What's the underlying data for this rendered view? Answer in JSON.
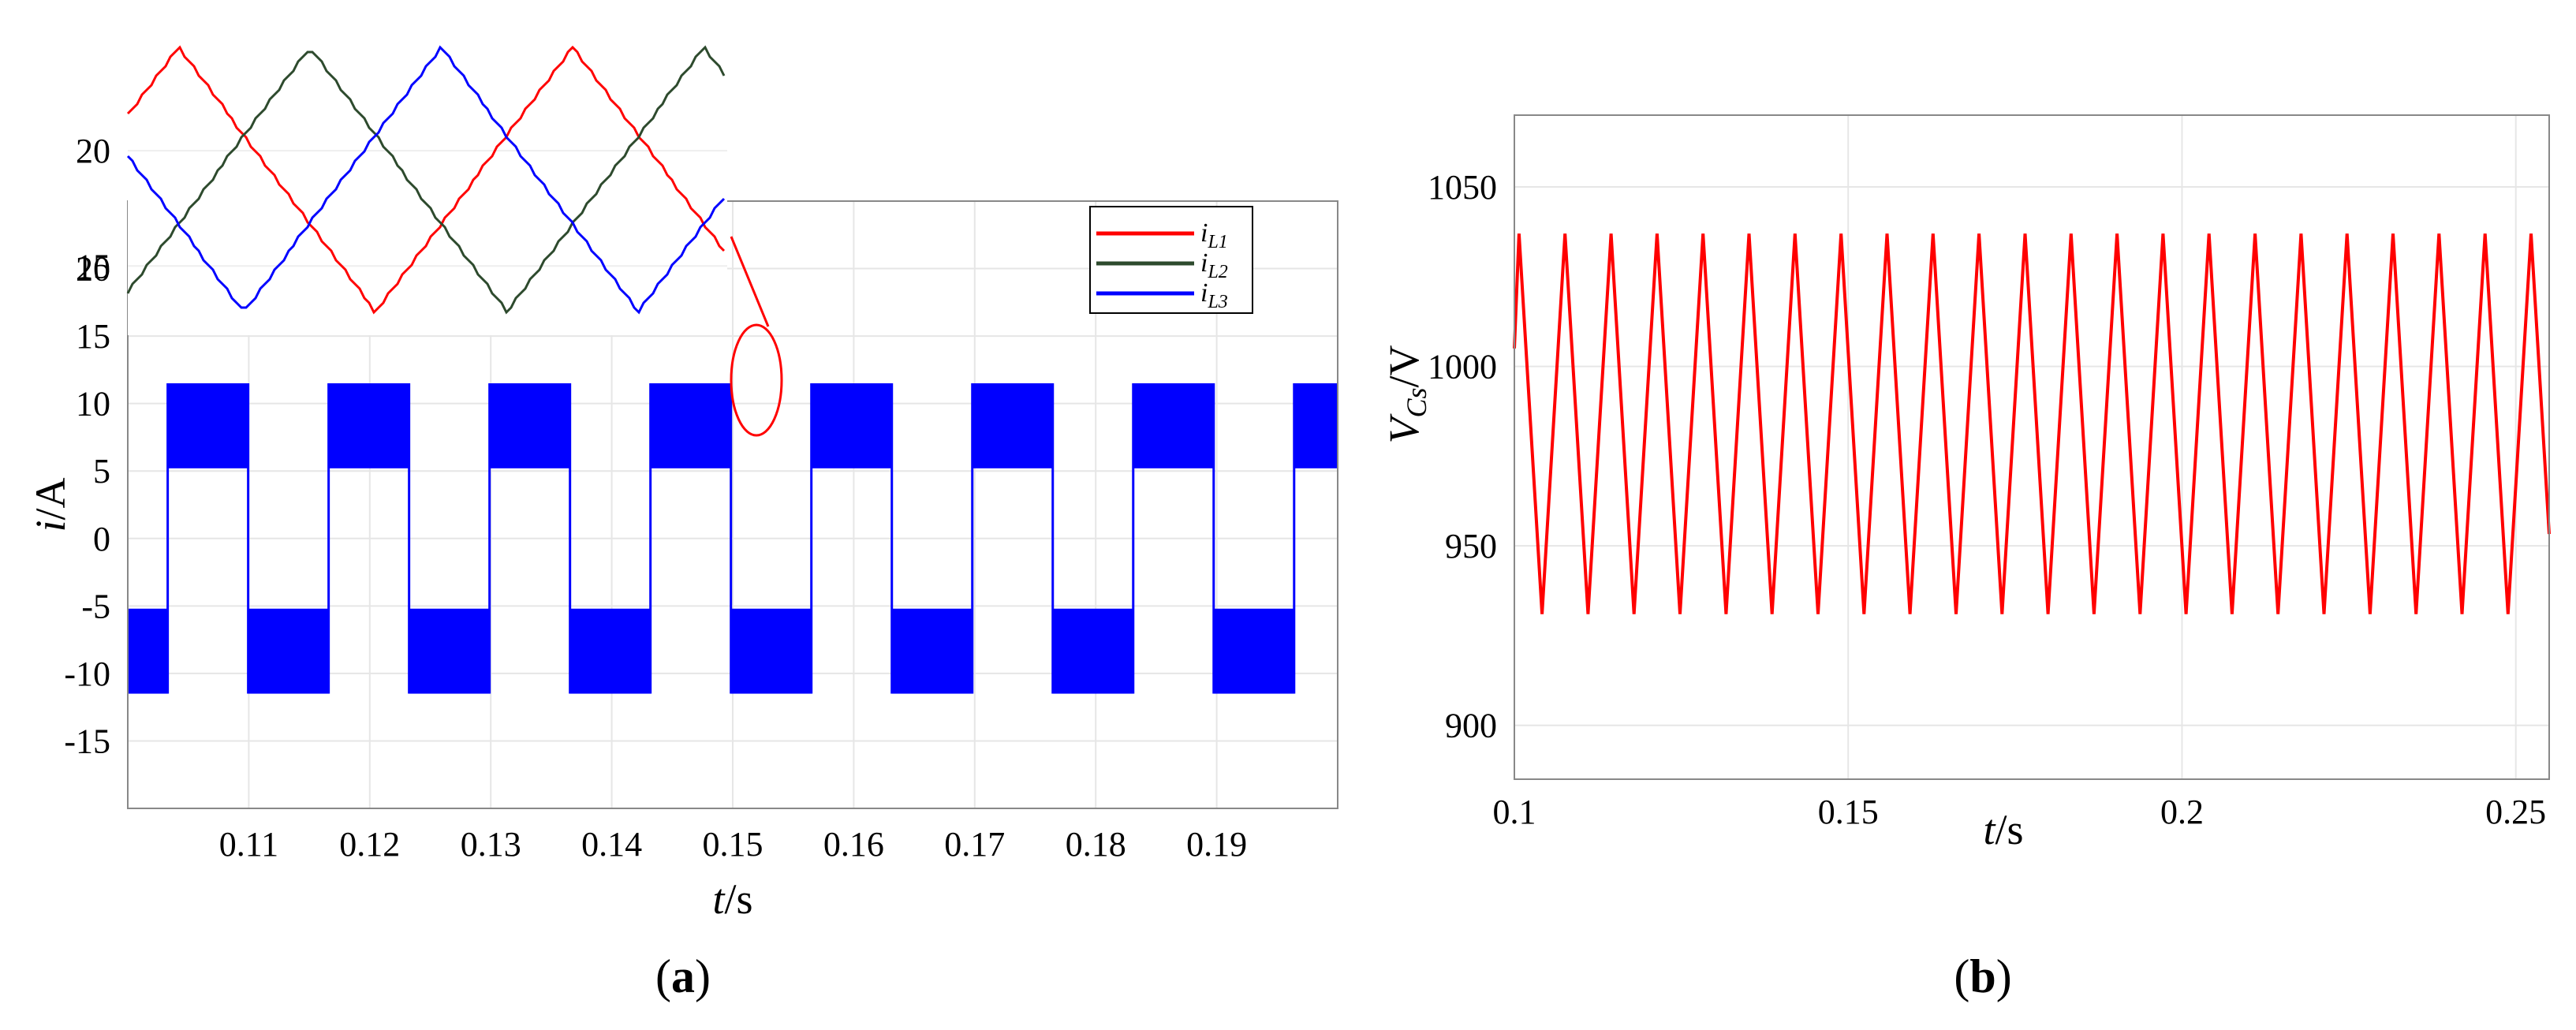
{
  "chart_data": [
    {
      "id": "a",
      "type": "line",
      "panel_label": "a",
      "xlabel_italic": "t",
      "xlabel_unit": "/s",
      "ylabel_italic": "i",
      "ylabel_unit": "/A",
      "xlim": [
        0.1,
        0.2
      ],
      "ylim": [
        -20,
        25
      ],
      "x_ticks": [
        0.11,
        0.12,
        0.13,
        0.14,
        0.15,
        0.16,
        0.17,
        0.18,
        0.19
      ],
      "y_ticks": [
        -15,
        -10,
        -5,
        0,
        5,
        10,
        15,
        20
      ],
      "grid": true,
      "legend": "top-right",
      "series": [
        {
          "name": "i_L1",
          "sub": "L1",
          "color": "#ff0000"
        },
        {
          "name": "i_L2",
          "sub": "L2",
          "color": "#2d4a2d"
        },
        {
          "name": "i_L3",
          "sub": "L3",
          "color": "#0000ff",
          "square_wave": {
            "period": 0.0133,
            "first_high_start": 0.1033,
            "high_band": [
              5.2,
              11.5
            ],
            "low_band": [
              -11.5,
              -5.2
            ]
          }
        }
      ],
      "inset": {
        "ylim": [
          12,
          25
        ],
        "y_ticks": [
          15,
          20
        ],
        "waveform": "triangle",
        "approx_peak": 24.5,
        "approx_trough": 13.0
      }
    },
    {
      "id": "b",
      "type": "line",
      "panel_label": "b",
      "xlabel_italic": "t",
      "xlabel_unit": "/s",
      "ylabel_italic": "V",
      "ylabel_sub": "Cs",
      "ylabel_unit": "/V",
      "xlim": [
        0.1,
        0.255
      ],
      "ylim": [
        885,
        1070
      ],
      "x_ticks": [
        0.1,
        0.15,
        0.2,
        0.25
      ],
      "y_ticks": [
        900,
        950,
        1000,
        1050
      ],
      "grid": true,
      "series": [
        {
          "name": "V_Cs",
          "color": "#ff0000",
          "sawtooth": {
            "period": 0.00689,
            "first_peak": 0.1007,
            "peak": 1037,
            "trough": 931
          }
        }
      ]
    }
  ]
}
